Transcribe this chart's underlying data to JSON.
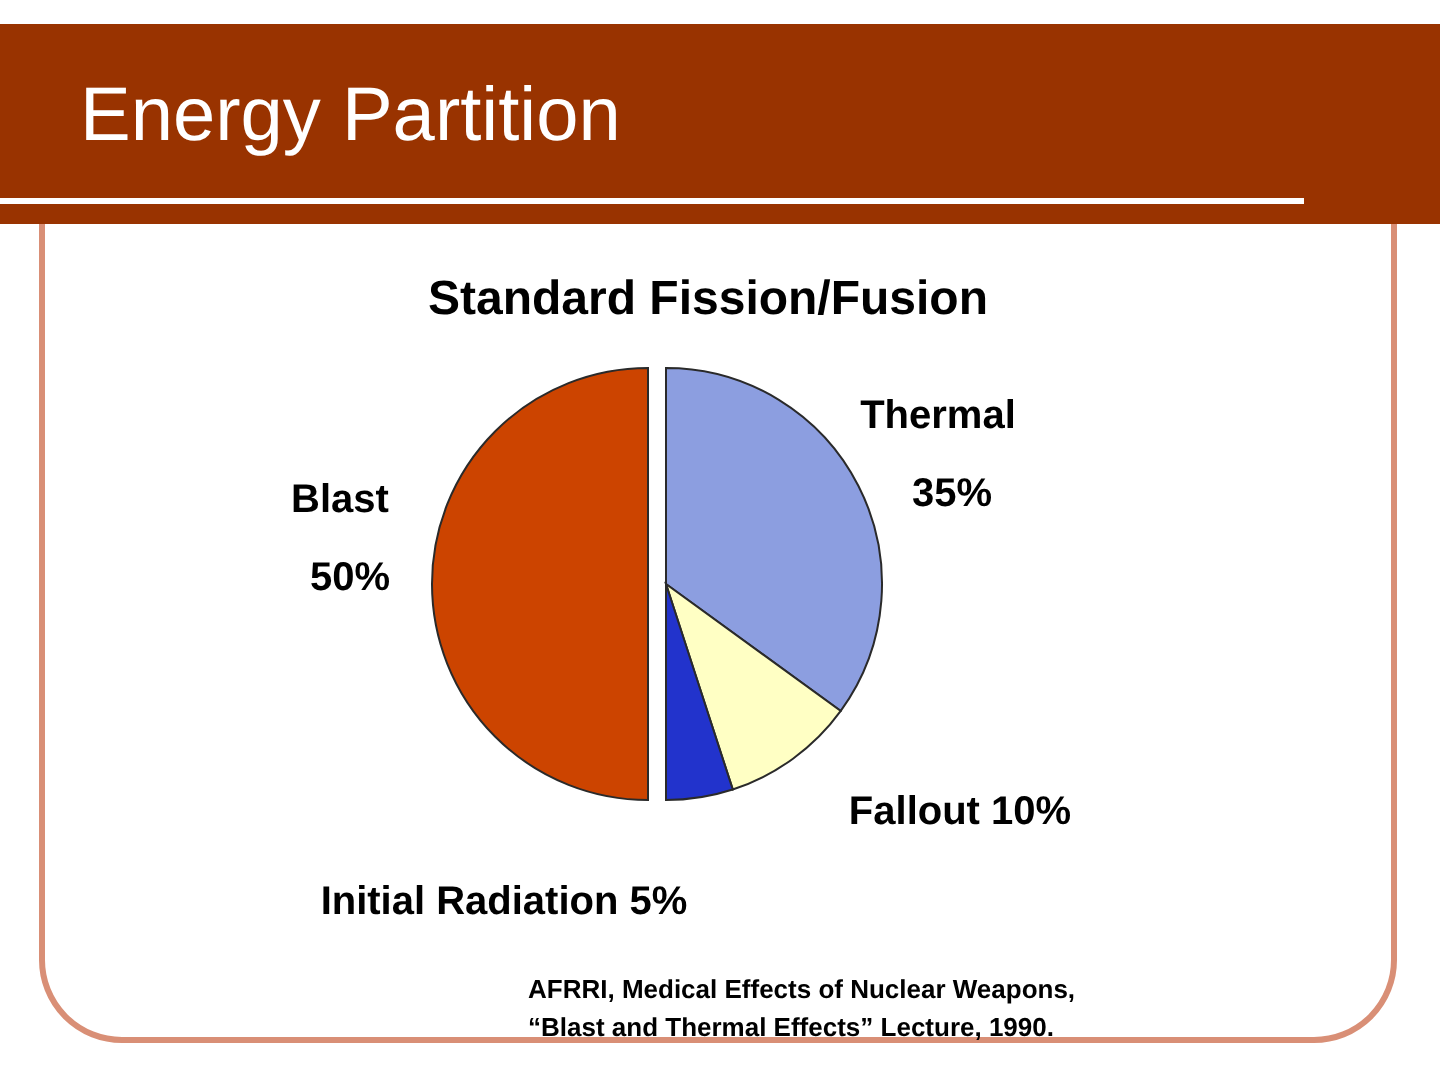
{
  "chart_data": {
    "type": "pie",
    "title": "Energy Partition",
    "subtitle": "Standard Fission/Fusion",
    "categories": [
      "Thermal",
      "Fallout",
      "Initial Radiation",
      "Blast"
    ],
    "values": [
      35,
      10,
      5,
      50
    ],
    "colors": [
      "#8c9ee0",
      "#ffffc4",
      "#2233cc",
      "#cc4400"
    ],
    "value_labels": [
      "35%",
      "10%",
      "5%",
      "50%"
    ],
    "annotations": [
      "AFRRI, Medical Effects of Nuclear Weapons,",
      "“Blast and Thermal Effects” Lecture, 1990."
    ]
  }
}
